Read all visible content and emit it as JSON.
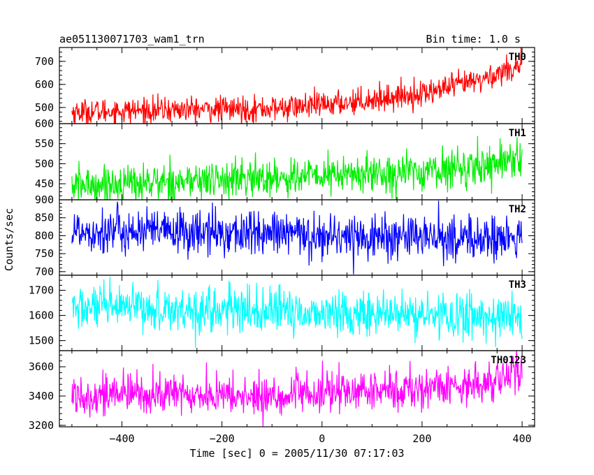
{
  "header": {
    "title": "ae051130071703_wam1_trn",
    "bin_time": "Bin time: 1.0 s"
  },
  "chart_data": {
    "type": "line",
    "xlabel": "Time [sec] 0 = 2005/11/30 07:17:03",
    "ylabel": "Counts/sec",
    "xlim": [
      -525,
      425
    ],
    "x_ticks": [
      -400,
      -200,
      0,
      200,
      400
    ],
    "x_tick_labels": [
      "−400",
      "−200",
      "0",
      "200",
      "400"
    ],
    "x_range_data": [
      -500,
      400
    ],
    "bin_time_s": 1.0,
    "grid": false,
    "legend": "none",
    "panels": [
      {
        "name": "TH0",
        "color": "#ff0000",
        "ylim": [
          430,
          760
        ],
        "y_ticks": [
          500,
          600,
          700
        ],
        "trend": [
          [
            -500,
            480
          ],
          [
            -300,
            490
          ],
          [
            -100,
            495
          ],
          [
            0,
            510
          ],
          [
            200,
            560
          ],
          [
            320,
            620
          ],
          [
            400,
            690
          ]
        ],
        "noise": 28
      },
      {
        "name": "TH1",
        "color": "#00ee00",
        "ylim": [
          410,
          600
        ],
        "y_ticks": [
          450,
          500,
          550,
          600
        ],
        "trend": [
          [
            -500,
            445
          ],
          [
            -300,
            455
          ],
          [
            -100,
            465
          ],
          [
            0,
            470
          ],
          [
            200,
            480
          ],
          [
            320,
            495
          ],
          [
            400,
            520
          ]
        ],
        "noise": 24
      },
      {
        "name": "TH2",
        "color": "#0000ff",
        "ylim": [
          690,
          900
        ],
        "y_ticks": [
          700,
          750,
          800,
          850,
          900
        ],
        "trend": [
          [
            -500,
            815
          ],
          [
            -300,
            810
          ],
          [
            -100,
            805
          ],
          [
            0,
            800
          ],
          [
            200,
            795
          ],
          [
            400,
            790
          ]
        ],
        "noise": 32
      },
      {
        "name": "TH3",
        "color": "#00ffff",
        "ylim": [
          1460,
          1760
        ],
        "y_ticks": [
          1500,
          1600,
          1700
        ],
        "trend": [
          [
            -500,
            1630
          ],
          [
            -300,
            1625
          ],
          [
            -100,
            1615
          ],
          [
            0,
            1610
          ],
          [
            200,
            1600
          ],
          [
            400,
            1595
          ]
        ],
        "noise": 45
      },
      {
        "name": "TH0123",
        "color": "#ff00ff",
        "ylim": [
          3190,
          3710
        ],
        "y_ticks": [
          3200,
          3400,
          3600
        ],
        "trend": [
          [
            -500,
            3410
          ],
          [
            -300,
            3415
          ],
          [
            -120,
            3390
          ],
          [
            0,
            3420
          ],
          [
            200,
            3450
          ],
          [
            320,
            3490
          ],
          [
            400,
            3560
          ]
        ],
        "noise": 70
      }
    ]
  }
}
